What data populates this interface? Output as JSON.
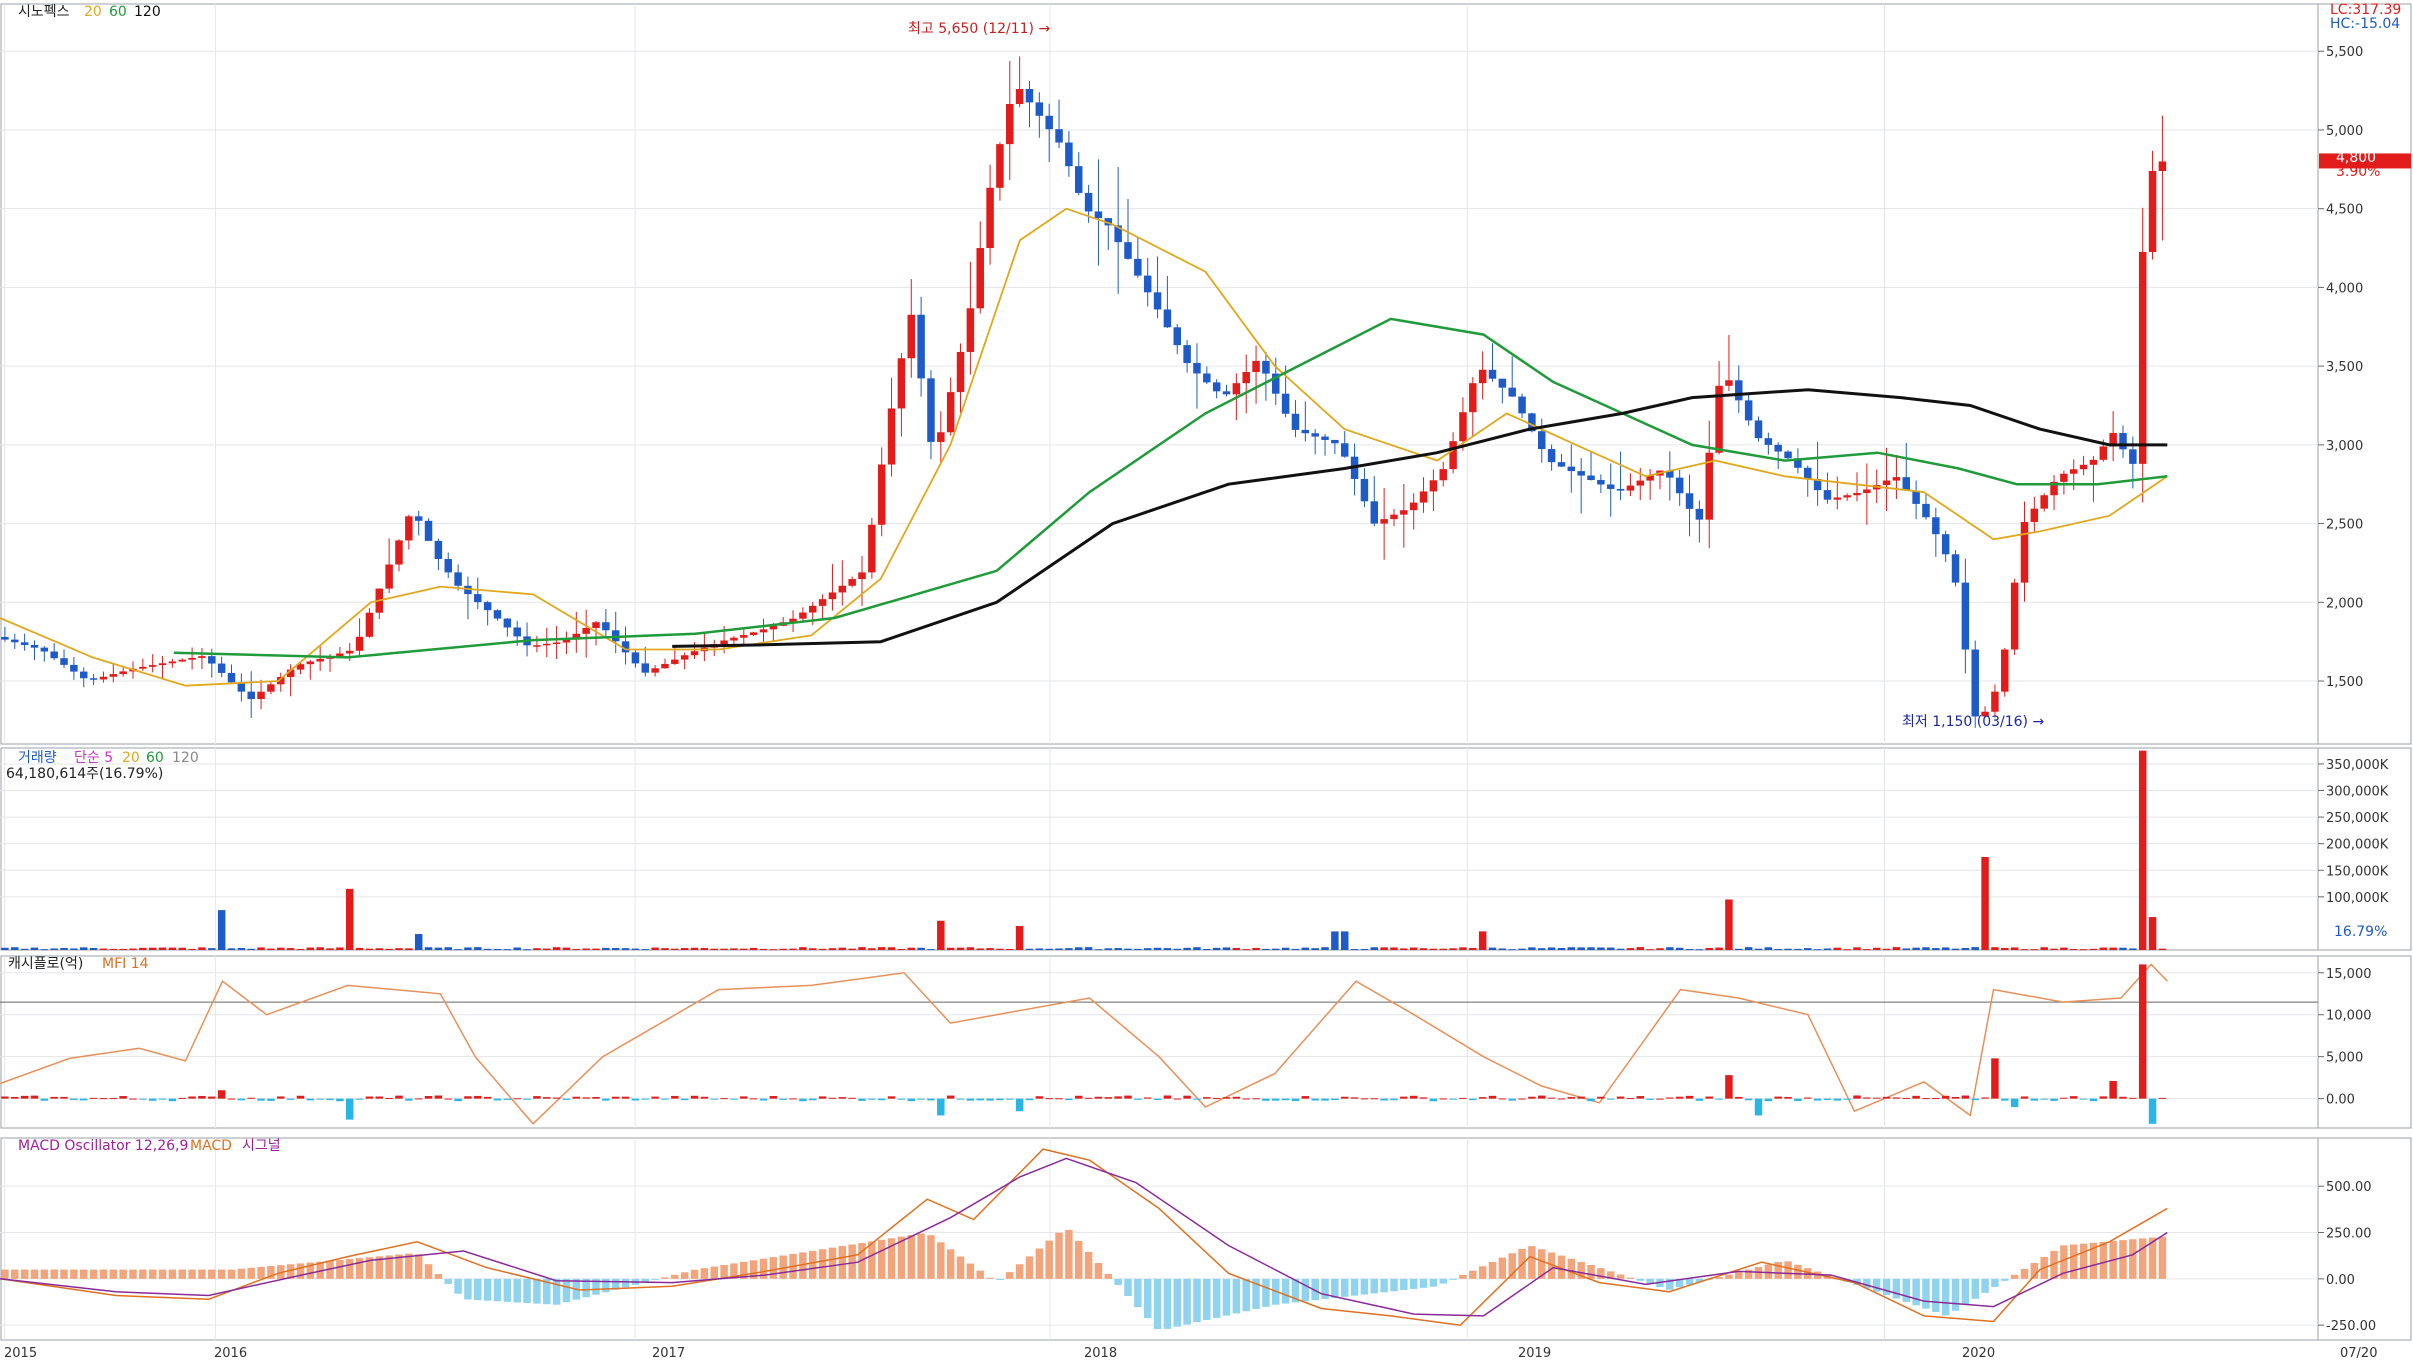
{
  "chart_data": {
    "type": "candlestick",
    "stock_name": "시노펙스",
    "ma_legend": [
      "20",
      "60",
      "120"
    ],
    "corner_labels": {
      "lc": "LC:317.39",
      "hc": "HC:-15.04"
    },
    "current_price_label": "4,800",
    "current_change_label": "3.90%",
    "price_ticks": [
      "1,500",
      "2,000",
      "2,500",
      "3,000",
      "3,500",
      "4,000",
      "4,500",
      "5,000",
      "5,500"
    ],
    "price_ylim": [
      1100,
      5800
    ],
    "high_annotation": "최고 5,650 (12/11) →",
    "low_annotation": "최저 1,150 (03/16) →",
    "x_ticks": [
      "2015",
      "2016",
      "2017",
      "2018",
      "2019",
      "2020",
      "07/20"
    ],
    "colors": {
      "up": "#e21b1b",
      "down": "#1f5bc6",
      "ma20": "#e0a81b",
      "ma60": "#1f9b3a",
      "ma120": "#111111"
    },
    "price_path": [
      [
        0,
        1780
      ],
      [
        0.02,
        1700
      ],
      [
        0.04,
        1500
      ],
      [
        0.06,
        1580
      ],
      [
        0.09,
        1660
      ],
      [
        0.11,
        1380
      ],
      [
        0.13,
        1600
      ],
      [
        0.155,
        1700
      ],
      [
        0.18,
        2600
      ],
      [
        0.19,
        2300
      ],
      [
        0.2,
        2100
      ],
      [
        0.215,
        1920
      ],
      [
        0.23,
        1720
      ],
      [
        0.245,
        1750
      ],
      [
        0.26,
        1880
      ],
      [
        0.28,
        1550
      ],
      [
        0.3,
        1680
      ],
      [
        0.315,
        1760
      ],
      [
        0.33,
        1820
      ],
      [
        0.345,
        1900
      ],
      [
        0.36,
        2050
      ],
      [
        0.375,
        2200
      ],
      [
        0.385,
        3100
      ],
      [
        0.395,
        3850
      ],
      [
        0.405,
        2900
      ],
      [
        0.42,
        3800
      ],
      [
        0.43,
        4700
      ],
      [
        0.44,
        5300
      ],
      [
        0.45,
        5100
      ],
      [
        0.46,
        4900
      ],
      [
        0.47,
        4500
      ],
      [
        0.48,
        4400
      ],
      [
        0.5,
        3900
      ],
      [
        0.515,
        3500
      ],
      [
        0.53,
        3300
      ],
      [
        0.545,
        3550
      ],
      [
        0.56,
        3100
      ],
      [
        0.58,
        3000
      ],
      [
        0.595,
        2500
      ],
      [
        0.61,
        2600
      ],
      [
        0.625,
        2850
      ],
      [
        0.64,
        3500
      ],
      [
        0.655,
        3300
      ],
      [
        0.67,
        2900
      ],
      [
        0.685,
        2800
      ],
      [
        0.7,
        2700
      ],
      [
        0.72,
        2850
      ],
      [
        0.735,
        2500
      ],
      [
        0.745,
        3500
      ],
      [
        0.76,
        3050
      ],
      [
        0.775,
        2900
      ],
      [
        0.79,
        2650
      ],
      [
        0.805,
        2700
      ],
      [
        0.82,
        2800
      ],
      [
        0.835,
        2500
      ],
      [
        0.845,
        2200
      ],
      [
        0.855,
        1200
      ],
      [
        0.865,
        1500
      ],
      [
        0.875,
        2500
      ],
      [
        0.89,
        2800
      ],
      [
        0.905,
        2900
      ],
      [
        0.915,
        3100
      ],
      [
        0.922,
        2800
      ],
      [
        0.928,
        4700
      ],
      [
        0.935,
        4800
      ]
    ],
    "ma20_path": [
      [
        0,
        1900
      ],
      [
        0.04,
        1650
      ],
      [
        0.08,
        1470
      ],
      [
        0.12,
        1500
      ],
      [
        0.16,
        2000
      ],
      [
        0.19,
        2100
      ],
      [
        0.23,
        2050
      ],
      [
        0.27,
        1700
      ],
      [
        0.31,
        1700
      ],
      [
        0.35,
        1790
      ],
      [
        0.38,
        2150
      ],
      [
        0.41,
        3000
      ],
      [
        0.44,
        4300
      ],
      [
        0.46,
        4500
      ],
      [
        0.48,
        4400
      ],
      [
        0.52,
        4100
      ],
      [
        0.55,
        3500
      ],
      [
        0.58,
        3100
      ],
      [
        0.62,
        2900
      ],
      [
        0.65,
        3200
      ],
      [
        0.68,
        3000
      ],
      [
        0.71,
        2800
      ],
      [
        0.74,
        2900
      ],
      [
        0.77,
        2800
      ],
      [
        0.8,
        2750
      ],
      [
        0.83,
        2700
      ],
      [
        0.86,
        2400
      ],
      [
        0.88,
        2450
      ],
      [
        0.91,
        2550
      ],
      [
        0.935,
        2800
      ]
    ],
    "ma60_path": [
      [
        0.075,
        1680
      ],
      [
        0.15,
        1650
      ],
      [
        0.23,
        1760
      ],
      [
        0.3,
        1800
      ],
      [
        0.36,
        1900
      ],
      [
        0.43,
        2200
      ],
      [
        0.47,
        2700
      ],
      [
        0.52,
        3200
      ],
      [
        0.56,
        3500
      ],
      [
        0.6,
        3800
      ],
      [
        0.64,
        3700
      ],
      [
        0.67,
        3400
      ],
      [
        0.7,
        3200
      ],
      [
        0.73,
        3000
      ],
      [
        0.77,
        2900
      ],
      [
        0.81,
        2950
      ],
      [
        0.845,
        2850
      ],
      [
        0.87,
        2750
      ],
      [
        0.905,
        2750
      ],
      [
        0.935,
        2800
      ]
    ],
    "ma120_path": [
      [
        0.29,
        1720
      ],
      [
        0.33,
        1730
      ],
      [
        0.38,
        1750
      ],
      [
        0.43,
        2000
      ],
      [
        0.48,
        2500
      ],
      [
        0.53,
        2750
      ],
      [
        0.58,
        2850
      ],
      [
        0.62,
        2950
      ],
      [
        0.66,
        3100
      ],
      [
        0.7,
        3200
      ],
      [
        0.73,
        3300
      ],
      [
        0.78,
        3350
      ],
      [
        0.82,
        3300
      ],
      [
        0.85,
        3250
      ],
      [
        0.88,
        3100
      ],
      [
        0.91,
        3000
      ],
      [
        0.935,
        3000
      ]
    ],
    "volume_title": "거래량",
    "volume_legend": [
      "단순 5",
      "20",
      "60",
      "120"
    ],
    "volume_info": "64,180,614주(16.79%)",
    "volume_ticks": [
      "100,000K",
      "150,000K",
      "200,000K",
      "250,000K",
      "300,000K",
      "350,000K"
    ],
    "volume_ylim": [
      0,
      380000
    ],
    "volume_current_label": "64,181K",
    "volume_current_pct": "16.79%",
    "volume_spikes": [
      [
        0.097,
        75000
      ],
      [
        0.152,
        115000
      ],
      [
        0.182,
        30000
      ],
      [
        0.405,
        55000
      ],
      [
        0.44,
        45000
      ],
      [
        0.578,
        35000
      ],
      [
        0.64,
        35000
      ],
      [
        0.745,
        95000
      ],
      [
        0.858,
        175000
      ],
      [
        0.925,
        375000
      ],
      [
        0.93,
        62000
      ]
    ],
    "mf_title": "캐시플로(억)",
    "mf_legend": "MFI 14",
    "mf_ticks": [
      "0.00",
      "5,000",
      "10,000",
      "15,000"
    ],
    "mf_ylim": [
      -3500,
      17000
    ],
    "mfi_path": [
      [
        0,
        1800
      ],
      [
        0.03,
        4800
      ],
      [
        0.06,
        6000
      ],
      [
        0.08,
        4500
      ],
      [
        0.096,
        14000
      ],
      [
        0.115,
        10000
      ],
      [
        0.15,
        13500
      ],
      [
        0.19,
        12500
      ],
      [
        0.205,
        5000
      ],
      [
        0.23,
        -3000
      ],
      [
        0.26,
        5000
      ],
      [
        0.31,
        13000
      ],
      [
        0.35,
        13500
      ],
      [
        0.39,
        15000
      ],
      [
        0.41,
        9000
      ],
      [
        0.43,
        10000
      ],
      [
        0.47,
        12000
      ],
      [
        0.5,
        5000
      ],
      [
        0.52,
        -1000
      ],
      [
        0.55,
        3000
      ],
      [
        0.585,
        14000
      ],
      [
        0.61,
        10000
      ],
      [
        0.64,
        5000
      ],
      [
        0.665,
        1500
      ],
      [
        0.69,
        -500
      ],
      [
        0.725,
        13000
      ],
      [
        0.75,
        12000
      ],
      [
        0.78,
        10000
      ],
      [
        0.8,
        -1500
      ],
      [
        0.83,
        2000
      ],
      [
        0.85,
        -2000
      ],
      [
        0.86,
        13000
      ],
      [
        0.89,
        11500
      ],
      [
        0.915,
        12000
      ],
      [
        0.928,
        16000
      ],
      [
        0.935,
        14000
      ]
    ],
    "mfi_guides": [
      11500
    ],
    "cashflow_spikes": [
      [
        0.097,
        1000
      ],
      [
        0.152,
        -2500
      ],
      [
        0.405,
        -2000
      ],
      [
        0.44,
        -1500
      ],
      [
        0.745,
        2800
      ],
      [
        0.76,
        -2000
      ],
      [
        0.862,
        4800
      ],
      [
        0.87,
        -1000
      ],
      [
        0.91,
        2100
      ],
      [
        0.925,
        16000
      ],
      [
        0.93,
        -3000
      ]
    ],
    "macd_title": "MACD Oscillator 12,26,9",
    "macd_legend": [
      "MACD",
      "시그널"
    ],
    "macd_ticks": [
      "-250.00",
      "0.00",
      "250.00",
      "500.00"
    ],
    "macd_ylim": [
      -330,
      760
    ],
    "macd_path": [
      [
        0,
        0
      ],
      [
        0.05,
        -90
      ],
      [
        0.09,
        -110
      ],
      [
        0.12,
        30
      ],
      [
        0.15,
        120
      ],
      [
        0.18,
        200
      ],
      [
        0.21,
        60
      ],
      [
        0.25,
        -60
      ],
      [
        0.29,
        -40
      ],
      [
        0.33,
        40
      ],
      [
        0.37,
        130
      ],
      [
        0.4,
        430
      ],
      [
        0.42,
        320
      ],
      [
        0.45,
        700
      ],
      [
        0.47,
        640
      ],
      [
        0.5,
        380
      ],
      [
        0.53,
        30
      ],
      [
        0.57,
        -160
      ],
      [
        0.6,
        -200
      ],
      [
        0.63,
        -250
      ],
      [
        0.66,
        120
      ],
      [
        0.69,
        -20
      ],
      [
        0.72,
        -70
      ],
      [
        0.76,
        90
      ],
      [
        0.8,
        -20
      ],
      [
        0.83,
        -200
      ],
      [
        0.86,
        -230
      ],
      [
        0.88,
        50
      ],
      [
        0.91,
        200
      ],
      [
        0.935,
        380
      ]
    ],
    "signal_path": [
      [
        0,
        0
      ],
      [
        0.05,
        -70
      ],
      [
        0.09,
        -90
      ],
      [
        0.13,
        20
      ],
      [
        0.16,
        100
      ],
      [
        0.2,
        150
      ],
      [
        0.24,
        -10
      ],
      [
        0.29,
        -20
      ],
      [
        0.33,
        20
      ],
      [
        0.37,
        90
      ],
      [
        0.41,
        330
      ],
      [
        0.44,
        550
      ],
      [
        0.46,
        650
      ],
      [
        0.49,
        520
      ],
      [
        0.53,
        180
      ],
      [
        0.57,
        -80
      ],
      [
        0.61,
        -190
      ],
      [
        0.64,
        -200
      ],
      [
        0.67,
        60
      ],
      [
        0.71,
        -30
      ],
      [
        0.75,
        40
      ],
      [
        0.79,
        20
      ],
      [
        0.83,
        -120
      ],
      [
        0.86,
        -150
      ],
      [
        0.89,
        30
      ],
      [
        0.92,
        130
      ],
      [
        0.935,
        250
      ]
    ],
    "macd_osc": [
      [
        0.1,
        50
      ],
      [
        0.18,
        140
      ],
      [
        0.2,
        -110
      ],
      [
        0.24,
        -140
      ],
      [
        0.3,
        50
      ],
      [
        0.4,
        250
      ],
      [
        0.43,
        -20
      ],
      [
        0.46,
        280
      ],
      [
        0.5,
        -280
      ],
      [
        0.55,
        -140
      ],
      [
        0.62,
        -40
      ],
      [
        0.66,
        180
      ],
      [
        0.72,
        -60
      ],
      [
        0.77,
        100
      ],
      [
        0.84,
        -200
      ],
      [
        0.89,
        180
      ],
      [
        0.935,
        230
      ]
    ]
  }
}
